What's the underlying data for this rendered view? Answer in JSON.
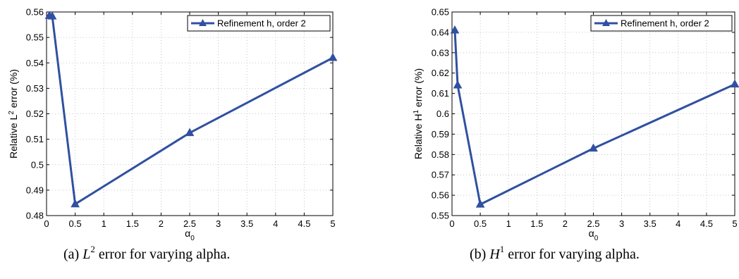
{
  "chart_data": [
    {
      "type": "line",
      "x": [
        0.05,
        0.1,
        0.5,
        2.5,
        5
      ],
      "series": [
        {
          "name": "Refinement h, order 2",
          "values": [
            0.5585,
            0.5583,
            0.4845,
            0.5125,
            0.542
          ],
          "color": "#3050a0",
          "marker": "triangle"
        }
      ],
      "xlabel": "α",
      "xlabel_sub": "0",
      "ylabel_pre": "Relative L",
      "ylabel_sup": "2",
      "ylabel_post": " error (%)",
      "xlim": [
        0,
        5
      ],
      "ylim": [
        0.48,
        0.56
      ],
      "xticks": [
        0,
        0.5,
        1,
        1.5,
        2,
        2.5,
        3,
        3.5,
        4,
        4.5,
        5
      ],
      "xtick_labels": [
        "0",
        "0.5",
        "1",
        "1.5",
        "2",
        "2.5",
        "3",
        "3.5",
        "4",
        "4.5",
        "5"
      ],
      "yticks": [
        0.48,
        0.49,
        0.5,
        0.51,
        0.52,
        0.53,
        0.54,
        0.55,
        0.56
      ],
      "ytick_labels": [
        "0.48",
        "0.49",
        "0.5",
        "0.51",
        "0.52",
        "0.53",
        "0.54",
        "0.55",
        "0.56"
      ],
      "grid": true,
      "legend_position": "top-right"
    },
    {
      "type": "line",
      "x": [
        0.05,
        0.1,
        0.5,
        2.5,
        5
      ],
      "series": [
        {
          "name": "Refinement h, order 2",
          "values": [
            0.641,
            0.614,
            0.5555,
            0.583,
            0.6145
          ],
          "color": "#3050a0",
          "marker": "triangle"
        }
      ],
      "xlabel": "α",
      "xlabel_sub": "0",
      "ylabel_pre": "Relative H",
      "ylabel_sup": "1",
      "ylabel_post": " error (%)",
      "xlim": [
        0,
        5
      ],
      "ylim": [
        0.55,
        0.65
      ],
      "xticks": [
        0,
        0.5,
        1,
        1.5,
        2,
        2.5,
        3,
        3.5,
        4,
        4.5,
        5
      ],
      "xtick_labels": [
        "0",
        "0.5",
        "1",
        "1.5",
        "2",
        "2.5",
        "3",
        "3.5",
        "4",
        "4.5",
        "5"
      ],
      "yticks": [
        0.55,
        0.56,
        0.57,
        0.58,
        0.59,
        0.6,
        0.61,
        0.62,
        0.63,
        0.64,
        0.65
      ],
      "ytick_labels": [
        "0.55",
        "0.56",
        "0.57",
        "0.58",
        "0.59",
        "0.6",
        "0.61",
        "0.62",
        "0.63",
        "0.64",
        "0.65"
      ],
      "grid": true,
      "legend_position": "top-right"
    }
  ],
  "captions": {
    "a": {
      "prefix": "(a)  ",
      "symbol": "L",
      "sup": "2",
      "rest": " error for varying alpha."
    },
    "b": {
      "prefix": "(b)  ",
      "symbol": "H",
      "sup": "1",
      "rest": " error for varying alpha."
    }
  }
}
